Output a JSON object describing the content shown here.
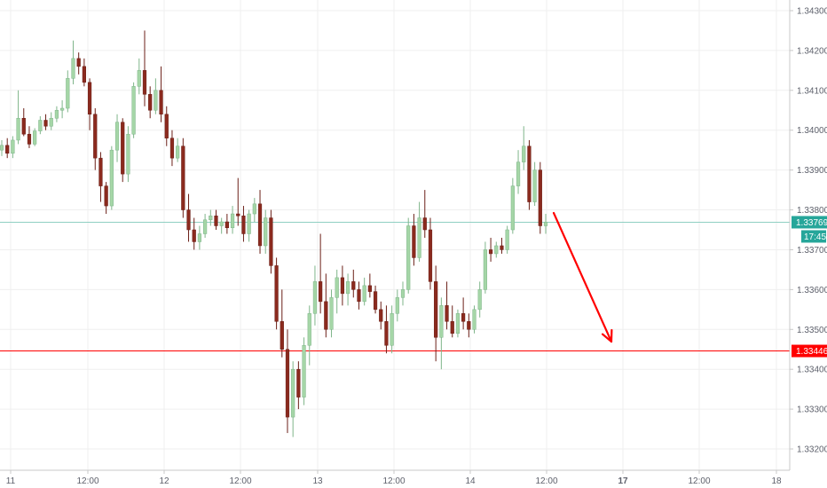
{
  "chart_data": {
    "type": "candlestick",
    "x_labels": [
      "11",
      "12:00",
      "12",
      "12:00",
      "13",
      "12:00",
      "14",
      "12:00",
      "17",
      "12:00",
      "18"
    ],
    "x_label_bold": [
      false,
      false,
      false,
      false,
      false,
      false,
      false,
      false,
      true,
      false,
      false
    ],
    "y_ticks": [
      "1.34300",
      "1.34200",
      "1.34100",
      "1.34000",
      "1.33900",
      "1.33800",
      "1.33700",
      "1.33600",
      "1.33500",
      "1.33400",
      "1.33300",
      "1.33200"
    ],
    "ylim": [
      1.3318,
      1.3432
    ],
    "grid": true,
    "current_price": {
      "value": 1.33769,
      "label": "1.33769",
      "countdown": "17:45",
      "color": "#26a69a"
    },
    "horizontal_level": {
      "value": 1.33446,
      "label": "1.33446",
      "color": "#ff0000"
    },
    "colors": {
      "up": "#a5d6a7",
      "down": "#8b2a1e",
      "arrow": "#ff0000"
    },
    "candles": [
      [
        1.3395,
        1.33975,
        1.33935,
        1.33962
      ],
      [
        1.33962,
        1.3398,
        1.3393,
        1.33942
      ],
      [
        1.33942,
        1.33985,
        1.3393,
        1.33975
      ],
      [
        1.33975,
        1.341,
        1.33965,
        1.3403
      ],
      [
        1.3403,
        1.34055,
        1.33985,
        1.3399
      ],
      [
        1.3399,
        1.3401,
        1.33955,
        1.33965
      ],
      [
        1.33965,
        1.34005,
        1.3396,
        1.33998
      ],
      [
        1.33998,
        1.34035,
        1.3399,
        1.34025
      ],
      [
        1.34025,
        1.3404,
        1.34,
        1.3401
      ],
      [
        1.3401,
        1.34045,
        1.34,
        1.3403
      ],
      [
        1.3403,
        1.3406,
        1.3402,
        1.3405
      ],
      [
        1.3405,
        1.34075,
        1.3403,
        1.34055
      ],
      [
        1.34055,
        1.3415,
        1.34045,
        1.3413
      ],
      [
        1.3413,
        1.34225,
        1.34115,
        1.3418
      ],
      [
        1.3418,
        1.34195,
        1.3414,
        1.3416
      ],
      [
        1.3416,
        1.3418,
        1.3411,
        1.3412
      ],
      [
        1.3412,
        1.3413,
        1.34,
        1.3404
      ],
      [
        1.3404,
        1.34055,
        1.339,
        1.3393
      ],
      [
        1.3393,
        1.33945,
        1.3382,
        1.3386
      ],
      [
        1.3386,
        1.3387,
        1.3379,
        1.3381
      ],
      [
        1.3381,
        1.3396,
        1.338,
        1.3395
      ],
      [
        1.3395,
        1.3404,
        1.3392,
        1.3402
      ],
      [
        1.3402,
        1.3403,
        1.3387,
        1.3389
      ],
      [
        1.3389,
        1.3401,
        1.3387,
        1.3399
      ],
      [
        1.3399,
        1.3412,
        1.3398,
        1.3411
      ],
      [
        1.3411,
        1.3418,
        1.3409,
        1.3415
      ],
      [
        1.3415,
        1.3425,
        1.3406,
        1.3409
      ],
      [
        1.3409,
        1.3411,
        1.3403,
        1.3405
      ],
      [
        1.3405,
        1.3413,
        1.3404,
        1.341
      ],
      [
        1.341,
        1.3416,
        1.3402,
        1.3404
      ],
      [
        1.3404,
        1.3406,
        1.3396,
        1.3398
      ],
      [
        1.3398,
        1.34,
        1.3391,
        1.3393
      ],
      [
        1.3393,
        1.3398,
        1.3392,
        1.3396
      ],
      [
        1.3396,
        1.3398,
        1.3378,
        1.338
      ],
      [
        1.338,
        1.3384,
        1.3372,
        1.3375
      ],
      [
        1.3375,
        1.3378,
        1.337,
        1.3372
      ],
      [
        1.3372,
        1.3376,
        1.337,
        1.3374
      ],
      [
        1.3374,
        1.3379,
        1.3373,
        1.33775
      ],
      [
        1.33775,
        1.338,
        1.3376,
        1.33785
      ],
      [
        1.33785,
        1.338,
        1.3375,
        1.3376
      ],
      [
        1.3376,
        1.3378,
        1.3374,
        1.3377
      ],
      [
        1.3377,
        1.3379,
        1.3374,
        1.33755
      ],
      [
        1.33755,
        1.3381,
        1.3374,
        1.3379
      ],
      [
        1.3379,
        1.3388,
        1.3376,
        1.33785
      ],
      [
        1.33785,
        1.3381,
        1.3372,
        1.3374
      ],
      [
        1.3374,
        1.338,
        1.3372,
        1.3379
      ],
      [
        1.3379,
        1.3383,
        1.3377,
        1.33815
      ],
      [
        1.33815,
        1.3385,
        1.3369,
        1.3371
      ],
      [
        1.3371,
        1.338,
        1.3369,
        1.3378
      ],
      [
        1.3378,
        1.338,
        1.3364,
        1.3366
      ],
      [
        1.3366,
        1.3368,
        1.335,
        1.3352
      ],
      [
        1.3352,
        1.336,
        1.3343,
        1.3345
      ],
      [
        1.3345,
        1.335,
        1.3324,
        1.3328
      ],
      [
        1.3328,
        1.3342,
        1.3323,
        1.334
      ],
      [
        1.334,
        1.3342,
        1.333,
        1.3333
      ],
      [
        1.3333,
        1.3348,
        1.3331,
        1.3346
      ],
      [
        1.3346,
        1.3356,
        1.3341,
        1.3354
      ],
      [
        1.3354,
        1.3366,
        1.3351,
        1.3362
      ],
      [
        1.3362,
        1.3374,
        1.3354,
        1.3357
      ],
      [
        1.3357,
        1.3364,
        1.3348,
        1.335
      ],
      [
        1.335,
        1.336,
        1.3348,
        1.3358
      ],
      [
        1.3358,
        1.3365,
        1.3354,
        1.3363
      ],
      [
        1.3363,
        1.3366,
        1.3356,
        1.3359
      ],
      [
        1.3359,
        1.3364,
        1.3356,
        1.3362
      ],
      [
        1.3362,
        1.3365,
        1.3358,
        1.336
      ],
      [
        1.336,
        1.3362,
        1.3355,
        1.3357
      ],
      [
        1.3357,
        1.3363,
        1.3356,
        1.3361
      ],
      [
        1.3361,
        1.3364,
        1.3358,
        1.33595
      ],
      [
        1.33595,
        1.3361,
        1.3354,
        1.3355
      ],
      [
        1.3355,
        1.3357,
        1.335,
        1.3352
      ],
      [
        1.3352,
        1.3356,
        1.3344,
        1.3346
      ],
      [
        1.3346,
        1.3356,
        1.3344,
        1.3354
      ],
      [
        1.3354,
        1.336,
        1.3352,
        1.3358
      ],
      [
        1.3358,
        1.3362,
        1.3356,
        1.336
      ],
      [
        1.336,
        1.3378,
        1.3359,
        1.3376
      ],
      [
        1.3376,
        1.3379,
        1.3366,
        1.3368
      ],
      [
        1.3368,
        1.3382,
        1.3367,
        1.3378
      ],
      [
        1.3378,
        1.3385,
        1.3373,
        1.3375
      ],
      [
        1.3375,
        1.3378,
        1.336,
        1.3362
      ],
      [
        1.3362,
        1.3366,
        1.3342,
        1.3348
      ],
      [
        1.3348,
        1.3358,
        1.334,
        1.3356
      ],
      [
        1.3356,
        1.3362,
        1.335,
        1.3352
      ],
      [
        1.3352,
        1.3356,
        1.3348,
        1.3349
      ],
      [
        1.3349,
        1.3355,
        1.3348,
        1.3354
      ],
      [
        1.3354,
        1.3358,
        1.335,
        1.3352
      ],
      [
        1.3352,
        1.3354,
        1.3348,
        1.335
      ],
      [
        1.335,
        1.3356,
        1.3349,
        1.3355
      ],
      [
        1.3355,
        1.3362,
        1.3353,
        1.336
      ],
      [
        1.336,
        1.3372,
        1.3359,
        1.337
      ],
      [
        1.337,
        1.3373,
        1.3367,
        1.3369
      ],
      [
        1.3369,
        1.3372,
        1.3368,
        1.3371
      ],
      [
        1.3371,
        1.3373,
        1.3369,
        1.337
      ],
      [
        1.337,
        1.3376,
        1.3369,
        1.3375
      ],
      [
        1.3375,
        1.3388,
        1.3374,
        1.3386
      ],
      [
        1.3386,
        1.3395,
        1.3384,
        1.3392
      ],
      [
        1.3392,
        1.3401,
        1.339,
        1.3396
      ],
      [
        1.3396,
        1.33975,
        1.338,
        1.3382
      ],
      [
        1.3382,
        1.3392,
        1.3381,
        1.339
      ],
      [
        1.339,
        1.3392,
        1.3374,
        1.3376
      ],
      [
        1.3376,
        1.3379,
        1.3374,
        1.33769
      ]
    ]
  }
}
